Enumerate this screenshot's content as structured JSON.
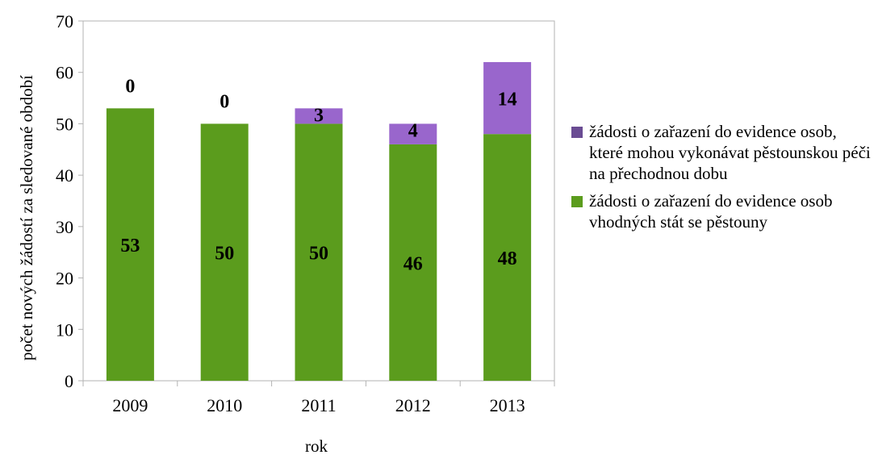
{
  "chart_data": {
    "type": "bar",
    "stacked": true,
    "categories": [
      "2009",
      "2010",
      "2011",
      "2012",
      "2013"
    ],
    "series": [
      {
        "name": "žádosti o zařazení do evidence osob vhodných stát se pěstouny",
        "values": [
          53,
          50,
          50,
          46,
          48
        ],
        "color": "#5b9c1d"
      },
      {
        "name": "žádosti o zařazení do evidence osob, které mohou vykonávat pěstounskou péči na přechodnou dobu",
        "values": [
          0,
          0,
          3,
          4,
          14
        ],
        "color": "#9966cc",
        "legend_color": "#6a4c93"
      }
    ],
    "xlabel": "rok",
    "ylabel": "počet nových žádostí za sledované období",
    "ylim": [
      0,
      70
    ],
    "yticks": [
      0,
      10,
      20,
      30,
      40,
      50,
      60,
      70
    ],
    "grid": false,
    "legend_position": "right"
  }
}
